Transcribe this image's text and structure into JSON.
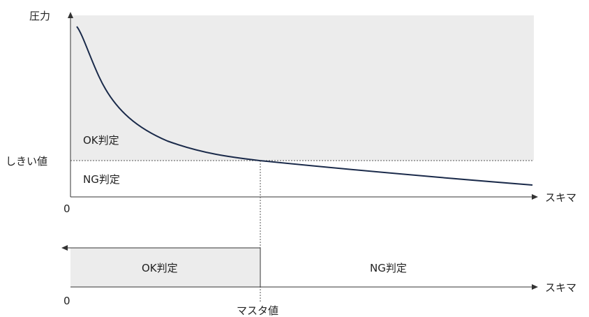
{
  "upper_chart": {
    "y_axis_label": "圧力",
    "x_axis_label": "スキマ",
    "origin_label": "0",
    "threshold_label": "しきい値",
    "ok_label": "OK判定",
    "ng_label": "NG判定"
  },
  "lower_chart": {
    "x_axis_label": "スキマ",
    "origin_label": "0",
    "ok_label": "OK判定",
    "ng_label": "NG判定",
    "master_label": "マスタ値"
  },
  "colors": {
    "ok_region": "#ececec",
    "curve": "#1a2a4a",
    "axis": "#333333",
    "guide": "#555555"
  }
}
